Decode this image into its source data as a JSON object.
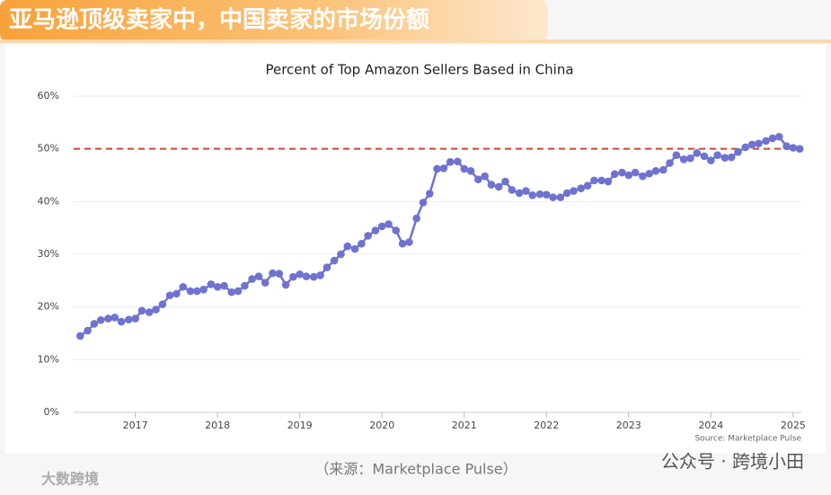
{
  "header": {
    "title": "亚马逊顶级卖家中，中国卖家的市场份额"
  },
  "chart_data": {
    "type": "line",
    "title": "Percent of Top Amazon Sellers Based in China",
    "source": "Source: Marketplace Pulse",
    "x": [
      2016.33,
      2016.42,
      2016.5,
      2016.58,
      2016.67,
      2016.75,
      2016.83,
      2016.92,
      2017,
      2017.08,
      2017.17,
      2017.25,
      2017.33,
      2017.42,
      2017.5,
      2017.58,
      2017.67,
      2017.75,
      2017.83,
      2017.92,
      2018,
      2018.08,
      2018.17,
      2018.25,
      2018.33,
      2018.42,
      2018.5,
      2018.58,
      2018.67,
      2018.75,
      2018.83,
      2018.92,
      2019,
      2019.08,
      2019.17,
      2019.25,
      2019.33,
      2019.42,
      2019.5,
      2019.58,
      2019.67,
      2019.75,
      2019.83,
      2019.92,
      2020,
      2020.08,
      2020.17,
      2020.25,
      2020.33,
      2020.42,
      2020.5,
      2020.58,
      2020.67,
      2020.75,
      2020.83,
      2020.92,
      2021,
      2021.08,
      2021.17,
      2021.25,
      2021.33,
      2021.42,
      2021.5,
      2021.58,
      2021.67,
      2021.75,
      2021.83,
      2021.92,
      2022,
      2022.08,
      2022.17,
      2022.25,
      2022.33,
      2022.42,
      2022.5,
      2022.58,
      2022.67,
      2022.75,
      2022.83,
      2022.92,
      2023,
      2023.08,
      2023.17,
      2023.25,
      2023.33,
      2023.42,
      2023.5,
      2023.58,
      2023.67,
      2023.75,
      2023.83,
      2023.92,
      2024,
      2024.08,
      2024.17,
      2024.25,
      2024.33,
      2024.42,
      2024.5,
      2024.58,
      2024.67,
      2024.75,
      2024.83,
      2024.92,
      2025,
      2025.08
    ],
    "series": [
      {
        "color": "#6f73cf",
        "values": [
          14.5,
          15.5,
          16.8,
          17.5,
          17.8,
          18,
          17.2,
          17.6,
          17.8,
          19.3,
          19,
          19.5,
          20.5,
          22.2,
          22.5,
          23.8,
          23,
          23,
          23.3,
          24.3,
          23.8,
          24,
          22.8,
          23,
          24,
          25.3,
          25.8,
          24.6,
          26.4,
          26.3,
          24.2,
          25.7,
          26.2,
          25.8,
          25.7,
          26,
          27.5,
          28.8,
          30,
          31.5,
          31,
          32,
          33.5,
          34.5,
          35.3,
          35.7,
          34.5,
          32,
          32.3,
          36.8,
          39.8,
          41.5,
          46.2,
          46.3,
          47.5,
          47.6,
          46.2,
          45.8,
          44.2,
          44.8,
          43.2,
          42.8,
          43.8,
          42.2,
          41.6,
          42,
          41.2,
          41.4,
          41.3,
          40.8,
          40.8,
          41.6,
          42,
          42.5,
          43,
          44,
          44,
          43.8,
          45.2,
          45.5,
          45,
          45.5,
          44.8,
          45.3,
          45.8,
          46,
          47.3,
          48.8,
          48,
          48.2,
          49.2,
          48.6,
          47.8,
          48.8,
          48.3,
          48.4,
          49.4,
          50.3,
          50.8,
          51,
          51.5,
          52,
          52.3,
          50.5,
          50.2,
          50
        ]
      }
    ],
    "reference_line": {
      "value": 50,
      "color": "#d0443a"
    },
    "xlim": [
      2016.25,
      2025.1
    ],
    "xticks": [
      2017,
      2018,
      2019,
      2020,
      2021,
      2022,
      2023,
      2024,
      2025
    ],
    "ylim": [
      0,
      60
    ],
    "yticks": [
      {
        "value": 0,
        "label": "0%"
      },
      {
        "value": 10,
        "label": "10%"
      },
      {
        "value": 20,
        "label": "20%"
      },
      {
        "value": 30,
        "label": "30%"
      },
      {
        "value": 40,
        "label": "40%"
      },
      {
        "value": 50,
        "label": "50%"
      },
      {
        "value": 60,
        "label": "60%"
      }
    ],
    "grid": true
  },
  "footer": {
    "caption": "（来源：Marketplace Pulse）",
    "watermark_right": "公众号 · 跨境小田",
    "watermark_left": "大数跨境"
  }
}
